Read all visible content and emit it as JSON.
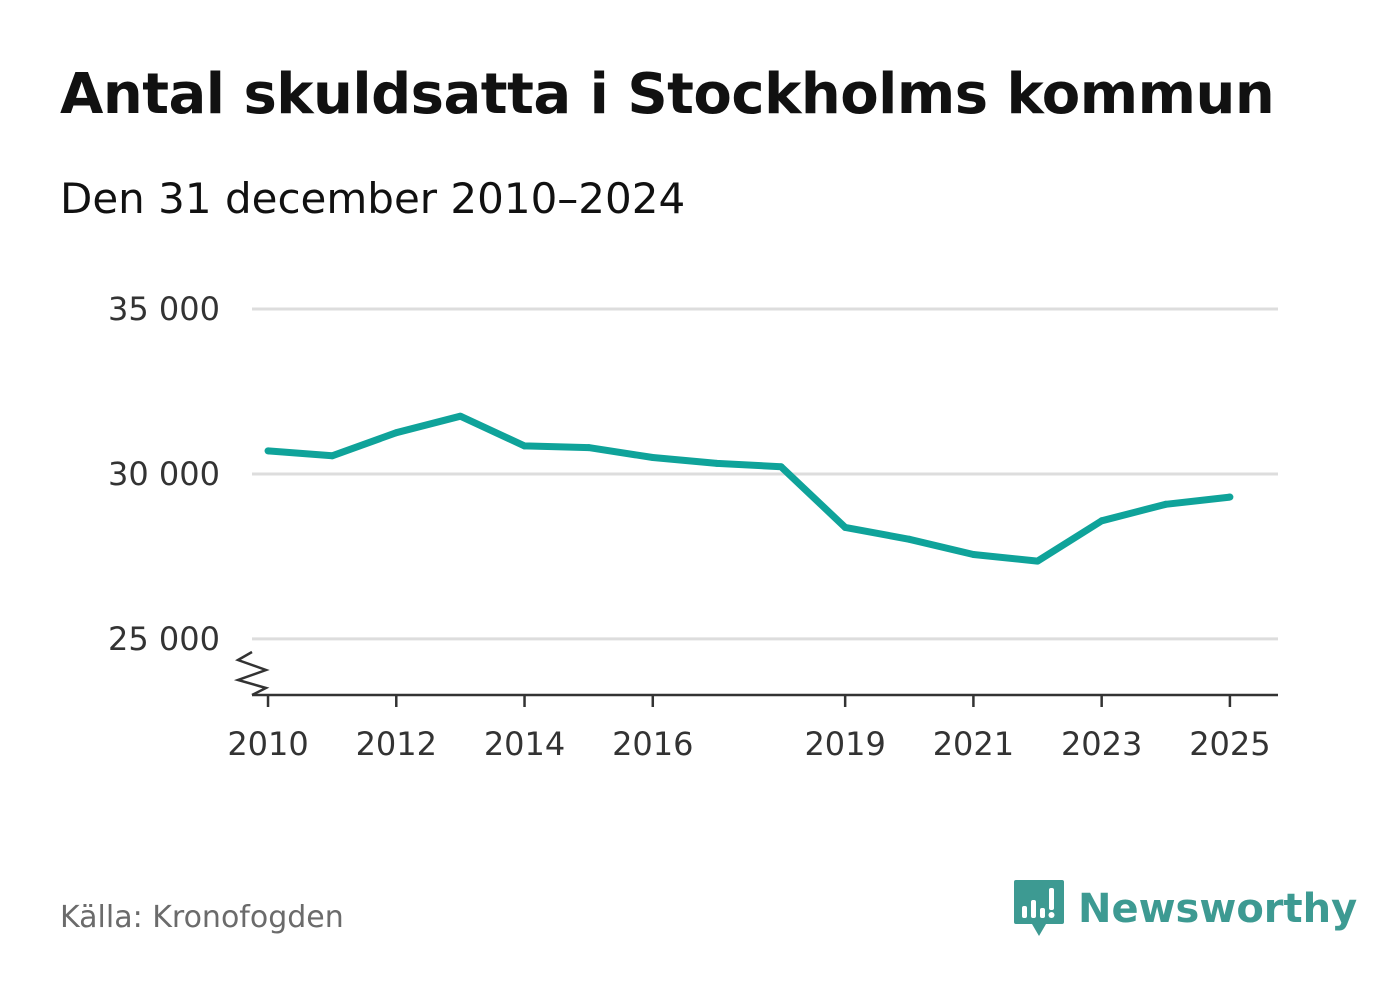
{
  "title": "Antal skuldsatta i Stockholms kommun",
  "subtitle": "Den 31 december 2010–2024",
  "source": "Källa: Kronofogden",
  "brand": {
    "name": "Newsworthy",
    "color": "#3d9a92",
    "icon": "newsworthy-logo-icon"
  },
  "colors": {
    "line": "#0fa39a",
    "grid": "#dddddd",
    "axis": "#333333"
  },
  "chart_data": {
    "type": "line",
    "title": "Antal skuldsatta i Stockholms kommun",
    "subtitle": "Den 31 december 2010–2024",
    "xlabel": "",
    "ylabel": "",
    "x": [
      2010,
      2011,
      2012,
      2013,
      2014,
      2015,
      2016,
      2017,
      2018,
      2019,
      2020,
      2021,
      2022,
      2023,
      2024,
      2025
    ],
    "series": [
      {
        "name": "Antal skuldsatta",
        "values": [
          30700,
          30550,
          31250,
          31750,
          30850,
          30800,
          30500,
          30320,
          30220,
          28380,
          28020,
          27560,
          27360,
          28580,
          29080,
          29300
        ]
      }
    ],
    "xlim": [
      2009.75,
      2025.75
    ],
    "ylim": [
      23300,
      35000
    ],
    "yticks": [
      25000,
      30000,
      35000
    ],
    "ytick_labels": [
      "25 000",
      "30 000",
      "35 000"
    ],
    "xticks": [
      2010,
      2012,
      2014,
      2016,
      2019,
      2021,
      2023,
      2025
    ],
    "xtick_labels": [
      "2010",
      "2012",
      "2014",
      "2016",
      "2019",
      "2021",
      "2023",
      "2025"
    ],
    "axis_break": true,
    "grid": true,
    "legend": "none"
  }
}
